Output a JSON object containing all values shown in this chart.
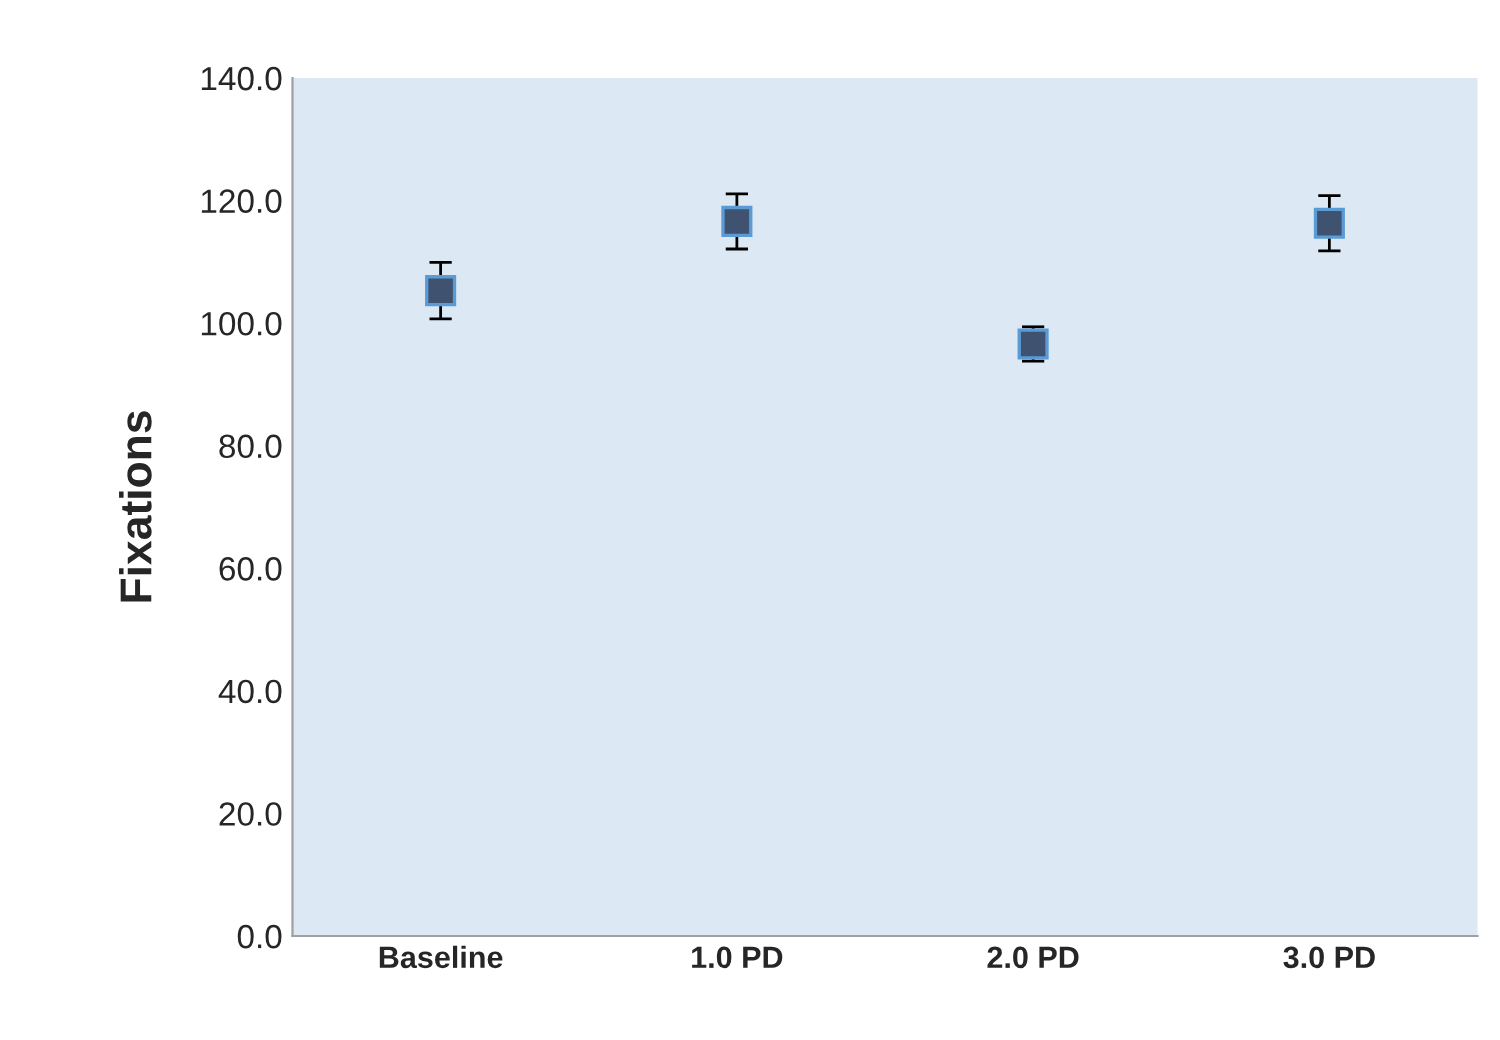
{
  "chart_data": {
    "type": "scatter",
    "ylabel": "Fixations",
    "categories": [
      "Baseline",
      "1.0 PD",
      "2.0 PD",
      "3.0 PD"
    ],
    "series": [
      {
        "color": "#3f5270",
        "values": [
          105.3,
          116.6,
          96.6,
          116.3
        ],
        "errors": [
          4.6,
          4.5,
          2.8,
          4.5
        ]
      }
    ],
    "ylim": [
      0,
      140
    ],
    "yticks": [
      {
        "value": 0,
        "label": "0.0"
      },
      {
        "value": 20,
        "label": "20.0"
      },
      {
        "value": 40,
        "label": "40.0"
      },
      {
        "value": 60,
        "label": "60.0"
      },
      {
        "value": 80,
        "label": "80.0"
      },
      {
        "value": 100,
        "label": "100.0"
      },
      {
        "value": 120,
        "label": "120.0"
      },
      {
        "value": 140,
        "label": "140.0"
      }
    ],
    "marker": "square",
    "grid": false,
    "legend": false
  }
}
